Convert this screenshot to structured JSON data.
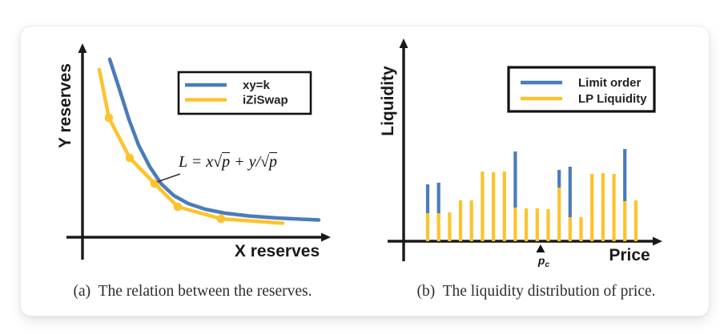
{
  "colors": {
    "blue": "#4a7cba",
    "yellow": "#fcc32c",
    "axis": "#1a1a1a",
    "caption_text": "#2d2d2d"
  },
  "figure": {
    "caption_a": "(a)  The relation between the reserves.",
    "caption_b": "(b)  The liquidity distribution of price."
  },
  "chart_data": [
    {
      "type": "line",
      "title": "(a)  The relation between the reserves.",
      "xlabel": "X reserves",
      "ylabel": "Y reserves",
      "axis_ticks": "none",
      "grid": false,
      "legend_position": "upper right",
      "xlim": [
        0,
        100
      ],
      "ylim": [
        0,
        100
      ],
      "series": [
        {
          "name": "xy=k",
          "color": "#4a7cba",
          "points": [
            [
              10.97,
              91.74
            ],
            [
              14.84,
              76.45
            ],
            [
              18.71,
              60.74
            ],
            [
              22.58,
              47.52
            ],
            [
              27.1,
              36.36
            ],
            [
              31.61,
              27.69
            ],
            [
              36.77,
              21.49
            ],
            [
              42.58,
              17.36
            ],
            [
              49.35,
              14.46
            ],
            [
              57.42,
              12.4
            ],
            [
              67.1,
              10.95
            ],
            [
              78.39,
              9.92
            ],
            [
              95.16,
              8.88
            ]
          ]
        },
        {
          "name": "iZiSwap",
          "color": "#fcc32c",
          "points": [
            [
              6.77,
              86.36
            ],
            [
              10.65,
              61.57
            ],
            [
              19.03,
              40.91
            ],
            [
              29.03,
              27.69
            ],
            [
              38.39,
              15.7
            ],
            [
              55.81,
              9.5
            ],
            [
              80.65,
              7.23
            ]
          ],
          "marker_indices": [
            1,
            2,
            3,
            4,
            5
          ]
        }
      ],
      "legend_series_order": [
        0,
        1
      ],
      "annotation": {
        "text": "L = x√p + y/√p",
        "radical": "√",
        "parts": [
          {
            "text": "L = x",
            "kind": "italic"
          },
          {
            "text": "p",
            "kind": "sqrt"
          },
          {
            "text": " + y/",
            "kind": "italic"
          },
          {
            "text": "p",
            "kind": "sqrt"
          }
        ],
        "attach_point": [
          29.03,
          27.69
        ]
      }
    },
    {
      "type": "bar",
      "title": "(b)  The liquidity distribution of price.",
      "xlabel": "Price",
      "ylabel": "Liquidity",
      "axis_ticks": "none",
      "grid": false,
      "stacked": true,
      "legend_position": "upper right",
      "ylim": [
        0,
        253
      ],
      "categories": [
        1,
        2,
        3,
        4,
        5,
        6,
        7,
        8,
        9,
        10,
        11,
        12,
        13,
        14,
        15,
        16,
        17,
        18,
        19,
        20
      ],
      "series": [
        {
          "name": "LP Liquidity",
          "color": "#fcc32c",
          "values": [
            35,
            35,
            36,
            51,
            51,
            87,
            86,
            87,
            42,
            41,
            41,
            40,
            67,
            30,
            30,
            84,
            85,
            84,
            50,
            51
          ]
        },
        {
          "name": "Limit order",
          "color": "#4a7cba",
          "values": [
            36,
            38,
            0,
            0,
            0,
            0,
            0,
            0,
            70,
            0,
            0,
            0,
            22,
            63,
            0,
            0,
            0,
            0,
            65,
            0
          ]
        }
      ],
      "legend_series_order": [
        1,
        0
      ],
      "x_marker": {
        "label_base": "p",
        "label_sub": "c",
        "position_index": 10.3
      }
    }
  ]
}
